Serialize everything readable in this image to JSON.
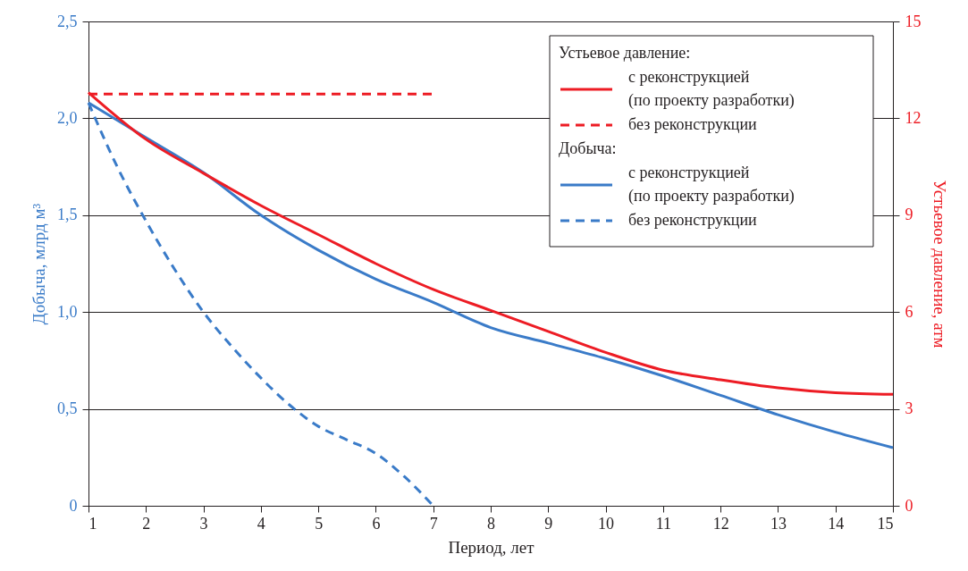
{
  "chart_data": {
    "type": "line",
    "xlabel": "Период, лет",
    "ylabel": "Добыча, млрд м³",
    "y2label": "Устьевое давление, атм",
    "x": [
      1,
      2,
      3,
      4,
      5,
      6,
      7,
      8,
      9,
      10,
      11,
      12,
      13,
      14,
      15
    ],
    "xlim": [
      1,
      15
    ],
    "xticks": [
      1,
      2,
      3,
      4,
      5,
      6,
      7,
      8,
      9,
      10,
      11,
      12,
      13,
      14,
      15
    ],
    "ylim": [
      0,
      2.5
    ],
    "yticks": [
      0,
      {
        "value": 0.5,
        "label": "0,5"
      },
      {
        "value": 1,
        "label": "1,0"
      },
      {
        "value": 1.5,
        "label": "1,5"
      },
      {
        "value": 2,
        "label": "2,0"
      },
      {
        "value": 2.5,
        "label": "2,5"
      }
    ],
    "y2lim": [
      0,
      15
    ],
    "y2ticks": [
      0,
      3,
      6,
      9,
      12,
      15
    ],
    "grid": "y",
    "legend": "top right",
    "marker": "none",
    "annotations": [
      "Устьевое давление:",
      "Добыча:"
    ],
    "series": [
      {
        "name": "с реконструкцией\n(по проекту разработки)",
        "color": "#ed1c24",
        "axis": "y2",
        "line_style": "solid",
        "values": [
          12.8,
          11.35,
          10.3,
          9.3,
          8.4,
          7.5,
          6.7,
          6.05,
          5.4,
          4.75,
          4.2,
          3.9,
          3.65,
          3.5,
          3.45
        ]
      },
      {
        "name": "без реконструкции",
        "color": "#ed1c24",
        "axis": "y2",
        "line_style": "dashed",
        "x": [
          1,
          7
        ],
        "values": [
          12.75,
          12.75
        ]
      },
      {
        "name": "с реконструкцией\n(по проекту разработки)",
        "color": "#3a7bc8",
        "axis": "y",
        "line_style": "solid",
        "values": [
          2.08,
          1.9,
          1.72,
          1.5,
          1.32,
          1.17,
          1.05,
          0.92,
          0.84,
          0.76,
          0.67,
          0.57,
          0.47,
          0.38,
          0.3
        ]
      },
      {
        "name": "без реконструкции",
        "color": "#3a7bc8",
        "axis": "y",
        "line_style": "dashed",
        "x": [
          1,
          1.5,
          2,
          2.5,
          3,
          3.5,
          4,
          4.5,
          5,
          5.5,
          6,
          6.5,
          7
        ],
        "values": [
          2.08,
          1.75,
          1.47,
          1.22,
          1.0,
          0.82,
          0.66,
          0.52,
          0.41,
          0.34,
          0.27,
          0.15,
          0.0
        ]
      }
    ]
  }
}
